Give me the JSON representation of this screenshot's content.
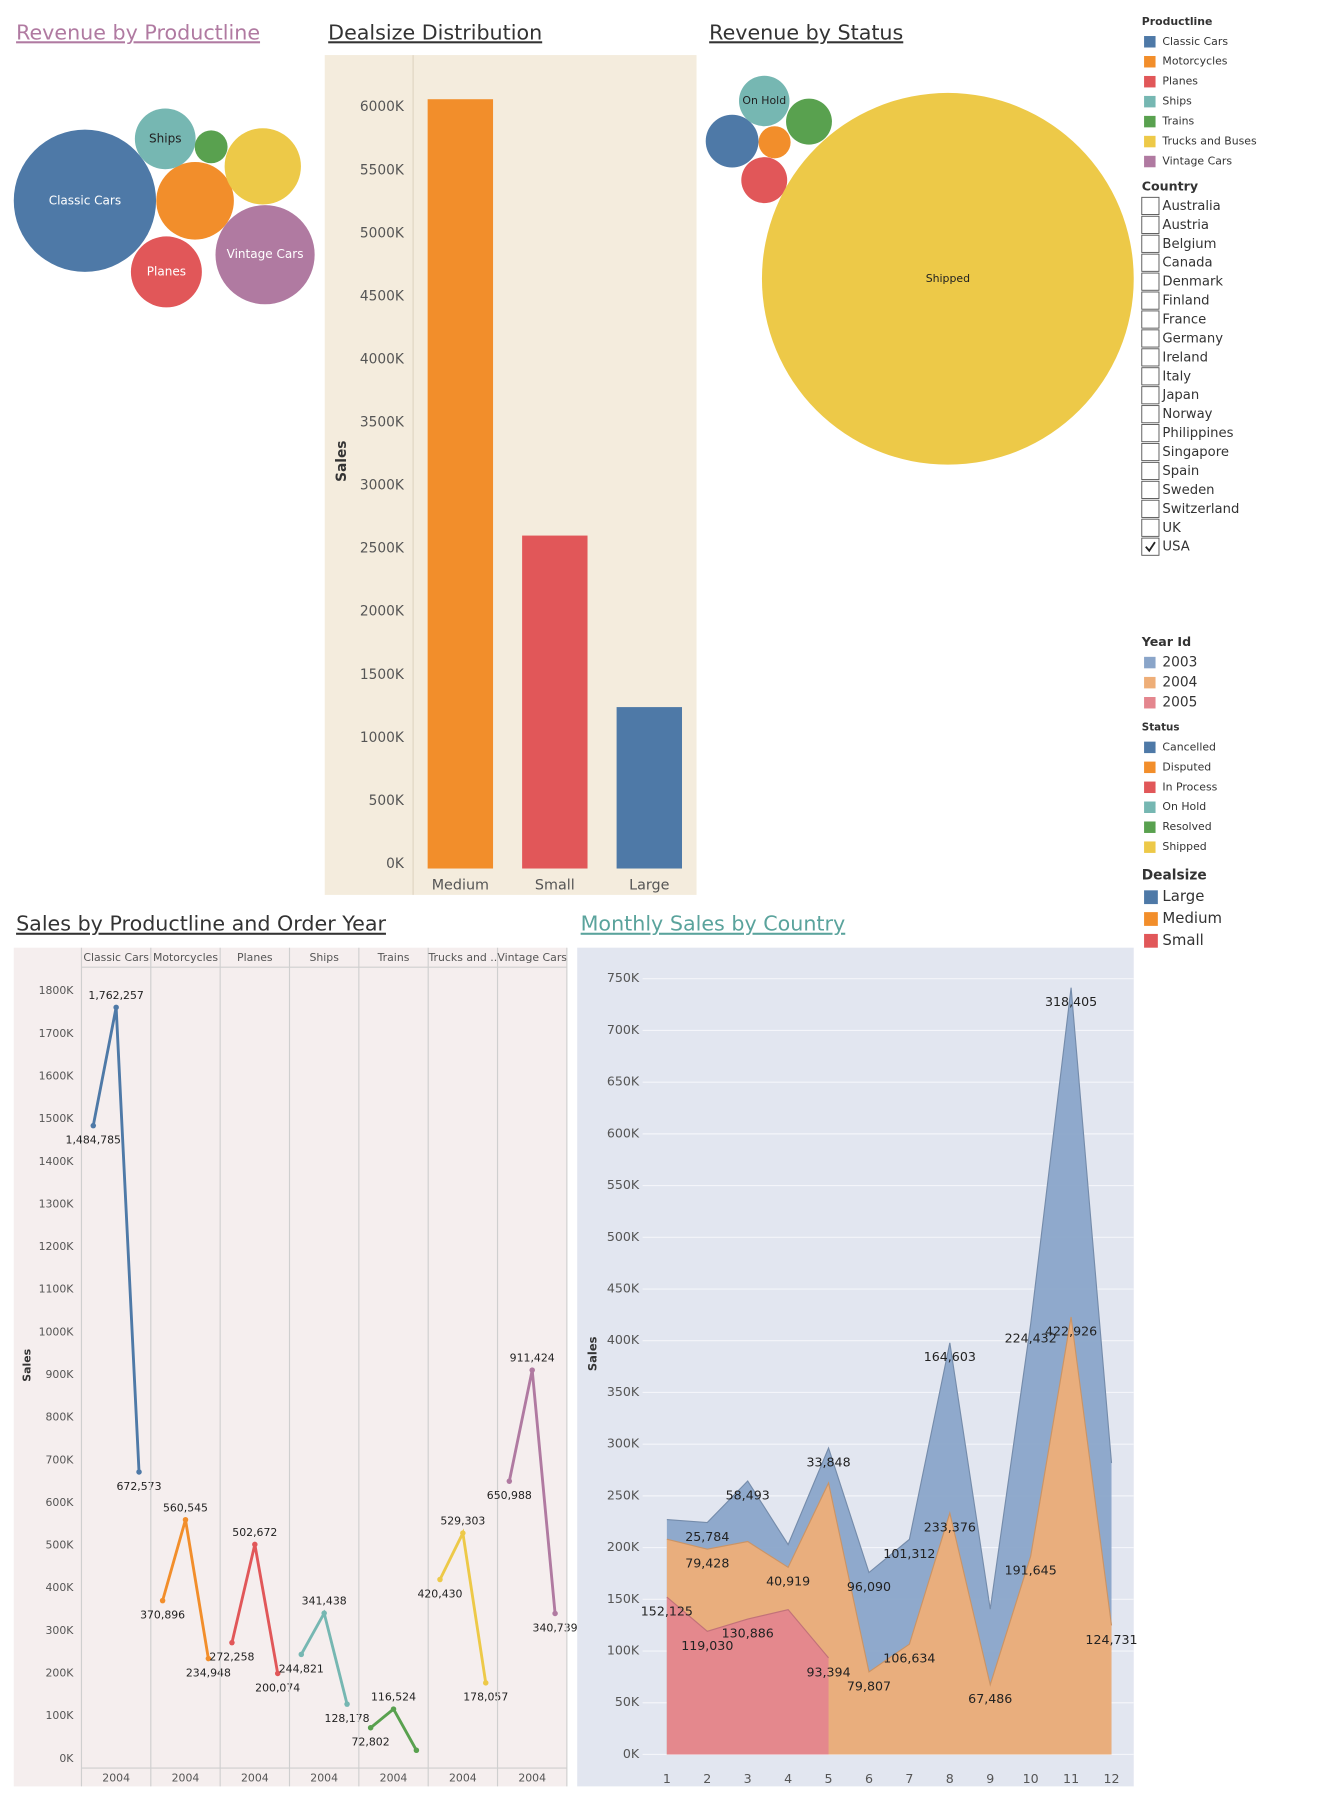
{
  "chart_data": [
    {
      "type": "bubble",
      "title": "Revenue by Productline",
      "categories": [
        "Classic Cars",
        null,
        "Planes",
        "Ships",
        null,
        null,
        "Vintage Cars"
      ],
      "values": [
        3919615,
        1166389,
        975004,
        714437,
        209326,
        1127790,
        1903151
      ],
      "colors": [
        "#4e79a7",
        "#f28e2b",
        "#e15759",
        "#76b7b2",
        "#59a14f",
        "#edc948",
        "#b07aa1"
      ]
    },
    {
      "type": "bar",
      "title": "Dealsize Distribution",
      "y_label": "Sales",
      "categories": [
        "Medium",
        "Small",
        "Large"
      ],
      "values": [
        6100000,
        2640000,
        1280000
      ],
      "colors": [
        "#f28e2b",
        "#e15759",
        "#4e79a7"
      ],
      "ylim": [
        0,
        6450000
      ],
      "yticks": [
        {
          "value": 0,
          "label": "0K"
        },
        {
          "value": 500000,
          "label": "500K"
        },
        {
          "value": 1000000,
          "label": "1000K"
        },
        {
          "value": 1500000,
          "label": "1500K"
        },
        {
          "value": 2000000,
          "label": "2000K"
        },
        {
          "value": 2500000,
          "label": "2500K"
        },
        {
          "value": 3000000,
          "label": "3000K"
        },
        {
          "value": 3500000,
          "label": "3500K"
        },
        {
          "value": 4000000,
          "label": "4000K"
        },
        {
          "value": 4500000,
          "label": "4500K"
        },
        {
          "value": 5000000,
          "label": "5000K"
        },
        {
          "value": 5500000,
          "label": "5500K"
        },
        {
          "value": 6000000,
          "label": "6000K"
        }
      ],
      "grid": false
    },
    {
      "type": "bubble",
      "title": "Revenue by Status",
      "categories": [
        null,
        null,
        null,
        "On Hold",
        null,
        "Shipped"
      ],
      "values": [
        187600,
        69500,
        141900,
        171700,
        141900,
        9310000
      ],
      "colors": [
        "#4e79a7",
        "#f28e2b",
        "#e15759",
        "#76b7b2",
        "#59a14f",
        "#edc948"
      ]
    },
    {
      "type": "line",
      "title": "Sales by Productline and Order Year",
      "y_label": "Sales",
      "ylim": [
        -19000,
        1851000
      ],
      "yticks": [
        {
          "value": 0,
          "label": "0K"
        },
        {
          "value": 100000,
          "label": "100K"
        },
        {
          "value": 200000,
          "label": "200K"
        },
        {
          "value": 300000,
          "label": "300K"
        },
        {
          "value": 400000,
          "label": "400K"
        },
        {
          "value": 500000,
          "label": "500K"
        },
        {
          "value": 600000,
          "label": "600K"
        },
        {
          "value": 700000,
          "label": "700K"
        },
        {
          "value": 800000,
          "label": "800K"
        },
        {
          "value": 900000,
          "label": "900K"
        },
        {
          "value": 1000000,
          "label": "1000K"
        },
        {
          "value": 1100000,
          "label": "1100K"
        },
        {
          "value": 1200000,
          "label": "1200K"
        },
        {
          "value": 1300000,
          "label": "1300K"
        },
        {
          "value": 1400000,
          "label": "1400K"
        },
        {
          "value": 1500000,
          "label": "1500K"
        },
        {
          "value": 1600000,
          "label": "1600K"
        },
        {
          "value": 1700000,
          "label": "1700K"
        },
        {
          "value": 1800000,
          "label": "1800K"
        }
      ],
      "grid": false,
      "panels": [
        {
          "name": "Classic Cars",
          "color": "#4e79a7",
          "categories": [
            null,
            "2004",
            null
          ],
          "values": [
            1484785,
            1762257,
            672573
          ],
          "value_labels": [
            "1,484,785",
            "1,762,257",
            "672,573"
          ]
        },
        {
          "name": "Motorcycles",
          "color": "#f28e2b",
          "categories": [
            null,
            "2004",
            null
          ],
          "values": [
            370896,
            560545,
            234948
          ],
          "value_labels": [
            "370,896",
            "560,545",
            "234,948"
          ]
        },
        {
          "name": "Planes",
          "color": "#e15759",
          "categories": [
            null,
            "2004",
            null
          ],
          "values": [
            272258,
            502672,
            200074
          ],
          "value_labels": [
            "272,258",
            "502,672",
            "200,074"
          ]
        },
        {
          "name": "Ships",
          "color": "#76b7b2",
          "categories": [
            null,
            "2004",
            null
          ],
          "values": [
            244821,
            341438,
            128178
          ],
          "value_labels": [
            "244,821",
            "341,438",
            "128,178"
          ]
        },
        {
          "name": "Trains",
          "color": "#59a14f",
          "categories": [
            null,
            "2004",
            null
          ],
          "values": [
            72802,
            116524,
            20000
          ],
          "value_labels": [
            "72,802",
            "116,524",
            null
          ]
        },
        {
          "name": "Trucks and ..",
          "color": "#edc948",
          "categories": [
            null,
            "2004",
            null
          ],
          "values": [
            420430,
            529303,
            178057
          ],
          "value_labels": [
            "420,430",
            "529,303",
            "178,057"
          ]
        },
        {
          "name": "Vintage Cars",
          "color": "#b07aa1",
          "categories": [
            null,
            "2004",
            null
          ],
          "values": [
            650988,
            911424,
            340739
          ],
          "value_labels": [
            "650,988",
            "911,424",
            "340,739"
          ]
        }
      ]
    },
    {
      "type": "area",
      "title": "Monthly Sales by Country",
      "y_label": "Sales",
      "legend_title": "Year Id",
      "x": [
        1,
        2,
        3,
        4,
        5,
        6,
        7,
        8,
        9,
        10,
        11,
        12
      ],
      "xlim": [
        0.4,
        12.55
      ],
      "xticks": [
        1,
        2,
        3,
        4,
        5,
        6,
        7,
        8,
        9,
        10,
        11,
        12
      ],
      "ylim": [
        -12000,
        780000
      ],
      "yticks": [
        {
          "value": 0,
          "label": "0K"
        },
        {
          "value": 50000,
          "label": "50K"
        },
        {
          "value": 100000,
          "label": "100K"
        },
        {
          "value": 150000,
          "label": "150K"
        },
        {
          "value": 200000,
          "label": "200K"
        },
        {
          "value": 250000,
          "label": "250K"
        },
        {
          "value": 300000,
          "label": "300K"
        },
        {
          "value": 350000,
          "label": "350K"
        },
        {
          "value": 400000,
          "label": "400K"
        },
        {
          "value": 450000,
          "label": "450K"
        },
        {
          "value": 500000,
          "label": "500K"
        },
        {
          "value": 550000,
          "label": "550K"
        },
        {
          "value": 600000,
          "label": "600K"
        },
        {
          "value": 650000,
          "label": "650K"
        },
        {
          "value": 700000,
          "label": "700K"
        },
        {
          "value": 750000,
          "label": "750K"
        }
      ],
      "grid": true,
      "series": [
        {
          "name": "2003",
          "color": "#8aa5c9",
          "values": [
            19000,
            25784,
            58493,
            22000,
            33848,
            96090,
            101312,
            164603,
            73000,
            224432,
            318405,
            157000
          ],
          "value_labels": [
            null,
            "25,784",
            "58,493",
            null,
            "33,848",
            "96,090",
            "101,312",
            "164,603",
            null,
            "224,432",
            "318,405",
            null
          ]
        },
        {
          "name": "2004",
          "color": "#eeae78",
          "values": [
            56000,
            79428,
            75000,
            40919,
            169000,
            79807,
            106634,
            233376,
            67486,
            191645,
            422926,
            124731
          ],
          "value_labels": [
            null,
            "79,428",
            null,
            "40,919",
            null,
            "79,807",
            "106,634",
            "233,376",
            "67,486",
            "191,645",
            "422,926",
            "124,731"
          ]
        },
        {
          "name": "2005",
          "color": "#e4868e",
          "values": [
            152125,
            119030,
            130886,
            140000,
            93394,
            null,
            null,
            null,
            null,
            null,
            null,
            null
          ],
          "value_labels": [
            "152,125",
            "119,030",
            "130,886",
            null,
            "93,394",
            null,
            null,
            null,
            null,
            null,
            null,
            null
          ]
        }
      ]
    }
  ],
  "legends": [
    {
      "title": "Productline",
      "items": [
        {
          "name": "Classic Cars",
          "color": "#4e79a7"
        },
        {
          "name": "Motorcycles",
          "color": "#f28e2b"
        },
        {
          "name": "Planes",
          "color": "#e15759"
        },
        {
          "name": "Ships",
          "color": "#76b7b2"
        },
        {
          "name": "Trains",
          "color": "#59a14f"
        },
        {
          "name": "Trucks and Buses",
          "color": "#edc948"
        },
        {
          "name": "Vintage Cars",
          "color": "#b07aa1"
        }
      ]
    },
    {
      "title": "Country",
      "items": [
        {
          "name": "Australia",
          "checked": false
        },
        {
          "name": "Austria",
          "checked": false
        },
        {
          "name": "Belgium",
          "checked": false
        },
        {
          "name": "Canada",
          "checked": false
        },
        {
          "name": "Denmark",
          "checked": false
        },
        {
          "name": "Finland",
          "checked": false
        },
        {
          "name": "France",
          "checked": false
        },
        {
          "name": "Germany",
          "checked": false
        },
        {
          "name": "Ireland",
          "checked": false
        },
        {
          "name": "Italy",
          "checked": false
        },
        {
          "name": "Japan",
          "checked": false
        },
        {
          "name": "Norway",
          "checked": false
        },
        {
          "name": "Philippines",
          "checked": false
        },
        {
          "name": "Singapore",
          "checked": false
        },
        {
          "name": "Spain",
          "checked": false
        },
        {
          "name": "Sweden",
          "checked": false
        },
        {
          "name": "Switzerland",
          "checked": false
        },
        {
          "name": "UK",
          "checked": false
        },
        {
          "name": "USA",
          "checked": true
        }
      ]
    },
    {
      "title": "Status",
      "items": [
        {
          "name": "Cancelled",
          "color": "#4e79a7"
        },
        {
          "name": "Disputed",
          "color": "#f28e2b"
        },
        {
          "name": "In Process",
          "color": "#e15759"
        },
        {
          "name": "On Hold",
          "color": "#76b7b2"
        },
        {
          "name": "Resolved",
          "color": "#59a14f"
        },
        {
          "name": "Shipped",
          "color": "#edc948"
        }
      ]
    },
    {
      "title": "Dealsize",
      "items": [
        {
          "name": "Large",
          "color": "#4e79a7"
        },
        {
          "name": "Medium",
          "color": "#f28e2b"
        },
        {
          "name": "Small",
          "color": "#e15759"
        }
      ]
    }
  ]
}
